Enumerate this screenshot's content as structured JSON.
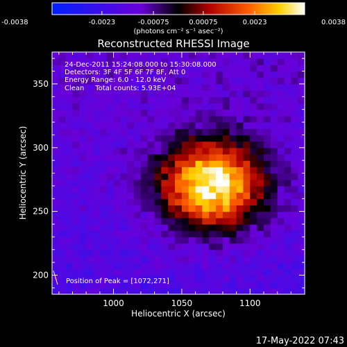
{
  "chart_data": {
    "type": "heatmap",
    "title": "Reconstructed RHESSI Image",
    "xlabel": "Heliocentric X (arcsec)",
    "ylabel": "Heliocentric Y (arcsec)",
    "xlim": [
      955,
      1140
    ],
    "ylim": [
      185,
      375
    ],
    "x_ticks": [
      1000,
      1050,
      1100
    ],
    "y_ticks": [
      200,
      250,
      300,
      350
    ],
    "x_tick_labels": [
      "1000",
      "1050",
      "1100"
    ],
    "y_tick_labels": [
      "200",
      "250",
      "300",
      "350"
    ],
    "colorbar": {
      "min": -0.0038,
      "max": 0.0038,
      "ticks": [
        -0.0038,
        -0.0023,
        -0.00075,
        0.00075,
        0.0023,
        0.0038
      ],
      "tick_labels": [
        "-0.0038",
        "-0.0023",
        "-0.00075",
        "0.00075",
        "0.0023",
        "0.0038"
      ],
      "units_label": "(photons cm⁻² s⁻¹ asec⁻²)"
    },
    "annotations": [
      "24-Dec-2011 15:24:08.000 to 15:30:08.000",
      "Detectors: 3F 4F 5F 6F 7F 8F, Att 0",
      "Energy Range: 6.0 - 12.0 keV",
      "Clean     Total counts: 5.93E+04"
    ],
    "peak_label": "Position of Peak = [1072,271]",
    "peak": {
      "x": 1072,
      "y": 271,
      "value": 0.0038
    },
    "source_sigma_x": 26,
    "source_sigma_y": 24
  },
  "footer": {
    "timestamp": "17-May-2022 07:43"
  }
}
